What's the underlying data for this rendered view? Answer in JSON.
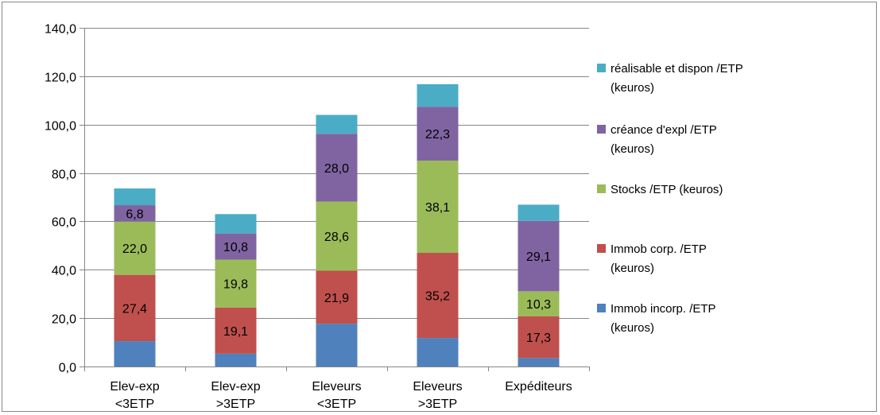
{
  "chart_data": {
    "type": "bar",
    "stacked": true,
    "categories": [
      [
        "Elev-exp",
        "<3ETP"
      ],
      [
        "Elev-exp",
        ">3ETP"
      ],
      [
        "Eleveurs",
        "<3ETP"
      ],
      [
        "Eleveurs",
        ">3ETP"
      ],
      [
        "Expéditeurs"
      ]
    ],
    "ylim": [
      0,
      140
    ],
    "yticks": [
      0,
      20,
      40,
      60,
      80,
      100,
      120,
      140
    ],
    "ytick_labels": [
      "0,0",
      "20,0",
      "40,0",
      "60,0",
      "80,0",
      "100,0",
      "120,0",
      "140,0"
    ],
    "grid": true,
    "legend_position": "right",
    "series": [
      {
        "name": "Immob incorp. /ETP (keuros)",
        "legend_lines": [
          "Immob incorp. /ETP",
          "(keuros)"
        ],
        "color": "#4F81BD",
        "values": [
          10.5,
          5.3,
          17.7,
          11.8,
          3.5
        ],
        "labels": [
          "",
          "",
          "",
          "",
          ""
        ]
      },
      {
        "name": "Immob corp. /ETP (keuros)",
        "legend_lines": [
          "Immob corp. /ETP",
          "(keuros)"
        ],
        "color": "#C0504D",
        "values": [
          27.4,
          19.1,
          21.9,
          35.2,
          17.3
        ],
        "labels": [
          "27,4",
          "19,1",
          "21,9",
          "35,2",
          "17,3"
        ]
      },
      {
        "name": "Stocks /ETP (keuros)",
        "legend_lines": [
          "Stocks /ETP (keuros)"
        ],
        "color": "#9BBB59",
        "values": [
          22.0,
          19.8,
          28.6,
          38.1,
          10.3
        ],
        "labels": [
          "22,0",
          "19,8",
          "28,6",
          "38,1",
          "10,3"
        ]
      },
      {
        "name": "créance d'expl /ETP (keuros)",
        "legend_lines": [
          "créance d'expl /ETP",
          "(keuros)"
        ],
        "color": "#8064A2",
        "values": [
          6.8,
          10.8,
          28.0,
          22.3,
          29.1
        ],
        "labels": [
          "6,8",
          "10,8",
          "28,0",
          "22,3",
          "29,1"
        ]
      },
      {
        "name": "réalisable et dispon /ETP (keuros)",
        "legend_lines": [
          "réalisable et dispon /ETP",
          "(keuros)"
        ],
        "color": "#4BACC6",
        "values": [
          6.9,
          8.0,
          7.8,
          9.3,
          6.7
        ],
        "labels": [
          "",
          "",
          "",
          "",
          ""
        ]
      }
    ]
  }
}
